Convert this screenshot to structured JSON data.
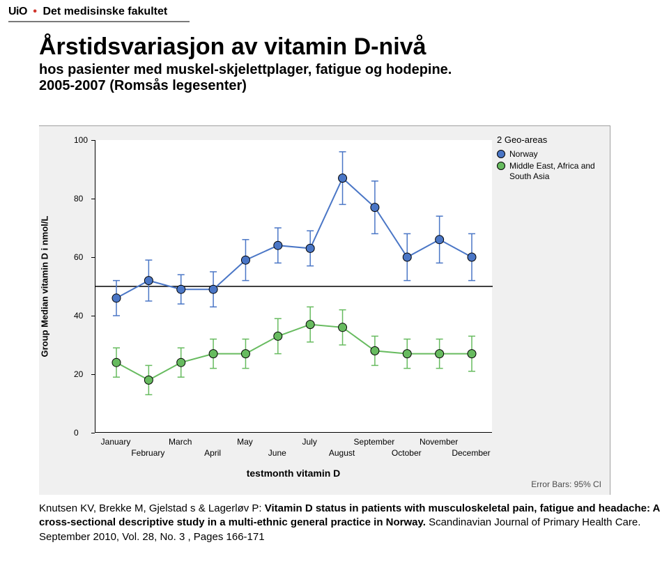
{
  "header": {
    "uio": "UiO",
    "faculty": "Det medisinske fakultet"
  },
  "title": "Årstidsvariasjon av vitamin D-nivå",
  "subtitle": "hos pasienter med muskel-skjelettplager, fatigue og hodepine.\n2005-2007 (Romsås legesenter)",
  "citation": {
    "authors": "Knutsen KV, Brekke M, Gjelstad s & Lagerløv  P:",
    "study_title": "Vitamin D status in patients with musculoskeletal pain, fatigue and headache: A cross-sectional descriptive study in a multi-ethnic general practice in Norway.",
    "journal": " Scandinavian Journal of Primary Health Care. September 2010, Vol. 28, No. 3 , Pages 166-171"
  },
  "chart": {
    "type": "line",
    "background_color": "#f0f0f0",
    "plot_background": "#ffffff",
    "x_label": "testmonth vitamin D",
    "y_label": "Group Median vitamin D i nmol/L",
    "y_lim": [
      0,
      100
    ],
    "y_ticks": [
      0,
      20,
      40,
      60,
      80,
      100
    ],
    "x_categories": [
      "January",
      "February",
      "March",
      "April",
      "May",
      "June",
      "July",
      "August",
      "September",
      "October",
      "November",
      "December"
    ],
    "ref_line_y": 50,
    "ref_line_color": "#000000",
    "legend": {
      "title": "2 Geo-areas",
      "items": [
        {
          "label": "Norway",
          "color": "#4a76c6"
        },
        {
          "label": "Middle East, Africa and South Asia",
          "color": "#67bb5f"
        }
      ]
    },
    "series": [
      {
        "name": "Norway",
        "color": "#4a76c6",
        "marker": "circle",
        "marker_size": 6,
        "line_width": 2,
        "values": [
          46,
          52,
          49,
          49,
          59,
          64,
          63,
          87,
          77,
          60,
          66,
          60
        ],
        "ci_low": [
          40,
          45,
          44,
          43,
          52,
          58,
          57,
          78,
          68,
          52,
          58,
          52
        ],
        "ci_high": [
          52,
          59,
          54,
          55,
          66,
          70,
          69,
          96,
          86,
          68,
          74,
          68
        ]
      },
      {
        "name": "Middle East, Africa and South Asia",
        "color": "#67bb5f",
        "marker": "circle",
        "marker_size": 6,
        "line_width": 2,
        "values": [
          24,
          18,
          24,
          27,
          27,
          33,
          37,
          36,
          28,
          27,
          27,
          27
        ],
        "ci_low": [
          19,
          13,
          19,
          22,
          22,
          27,
          31,
          30,
          23,
          22,
          22,
          21
        ],
        "ci_high": [
          29,
          23,
          29,
          32,
          32,
          39,
          43,
          42,
          33,
          32,
          32,
          33
        ]
      }
    ],
    "error_bars_label": "Error Bars: 95% CI",
    "tick_fontsize": 12,
    "label_fontsize": 13
  }
}
